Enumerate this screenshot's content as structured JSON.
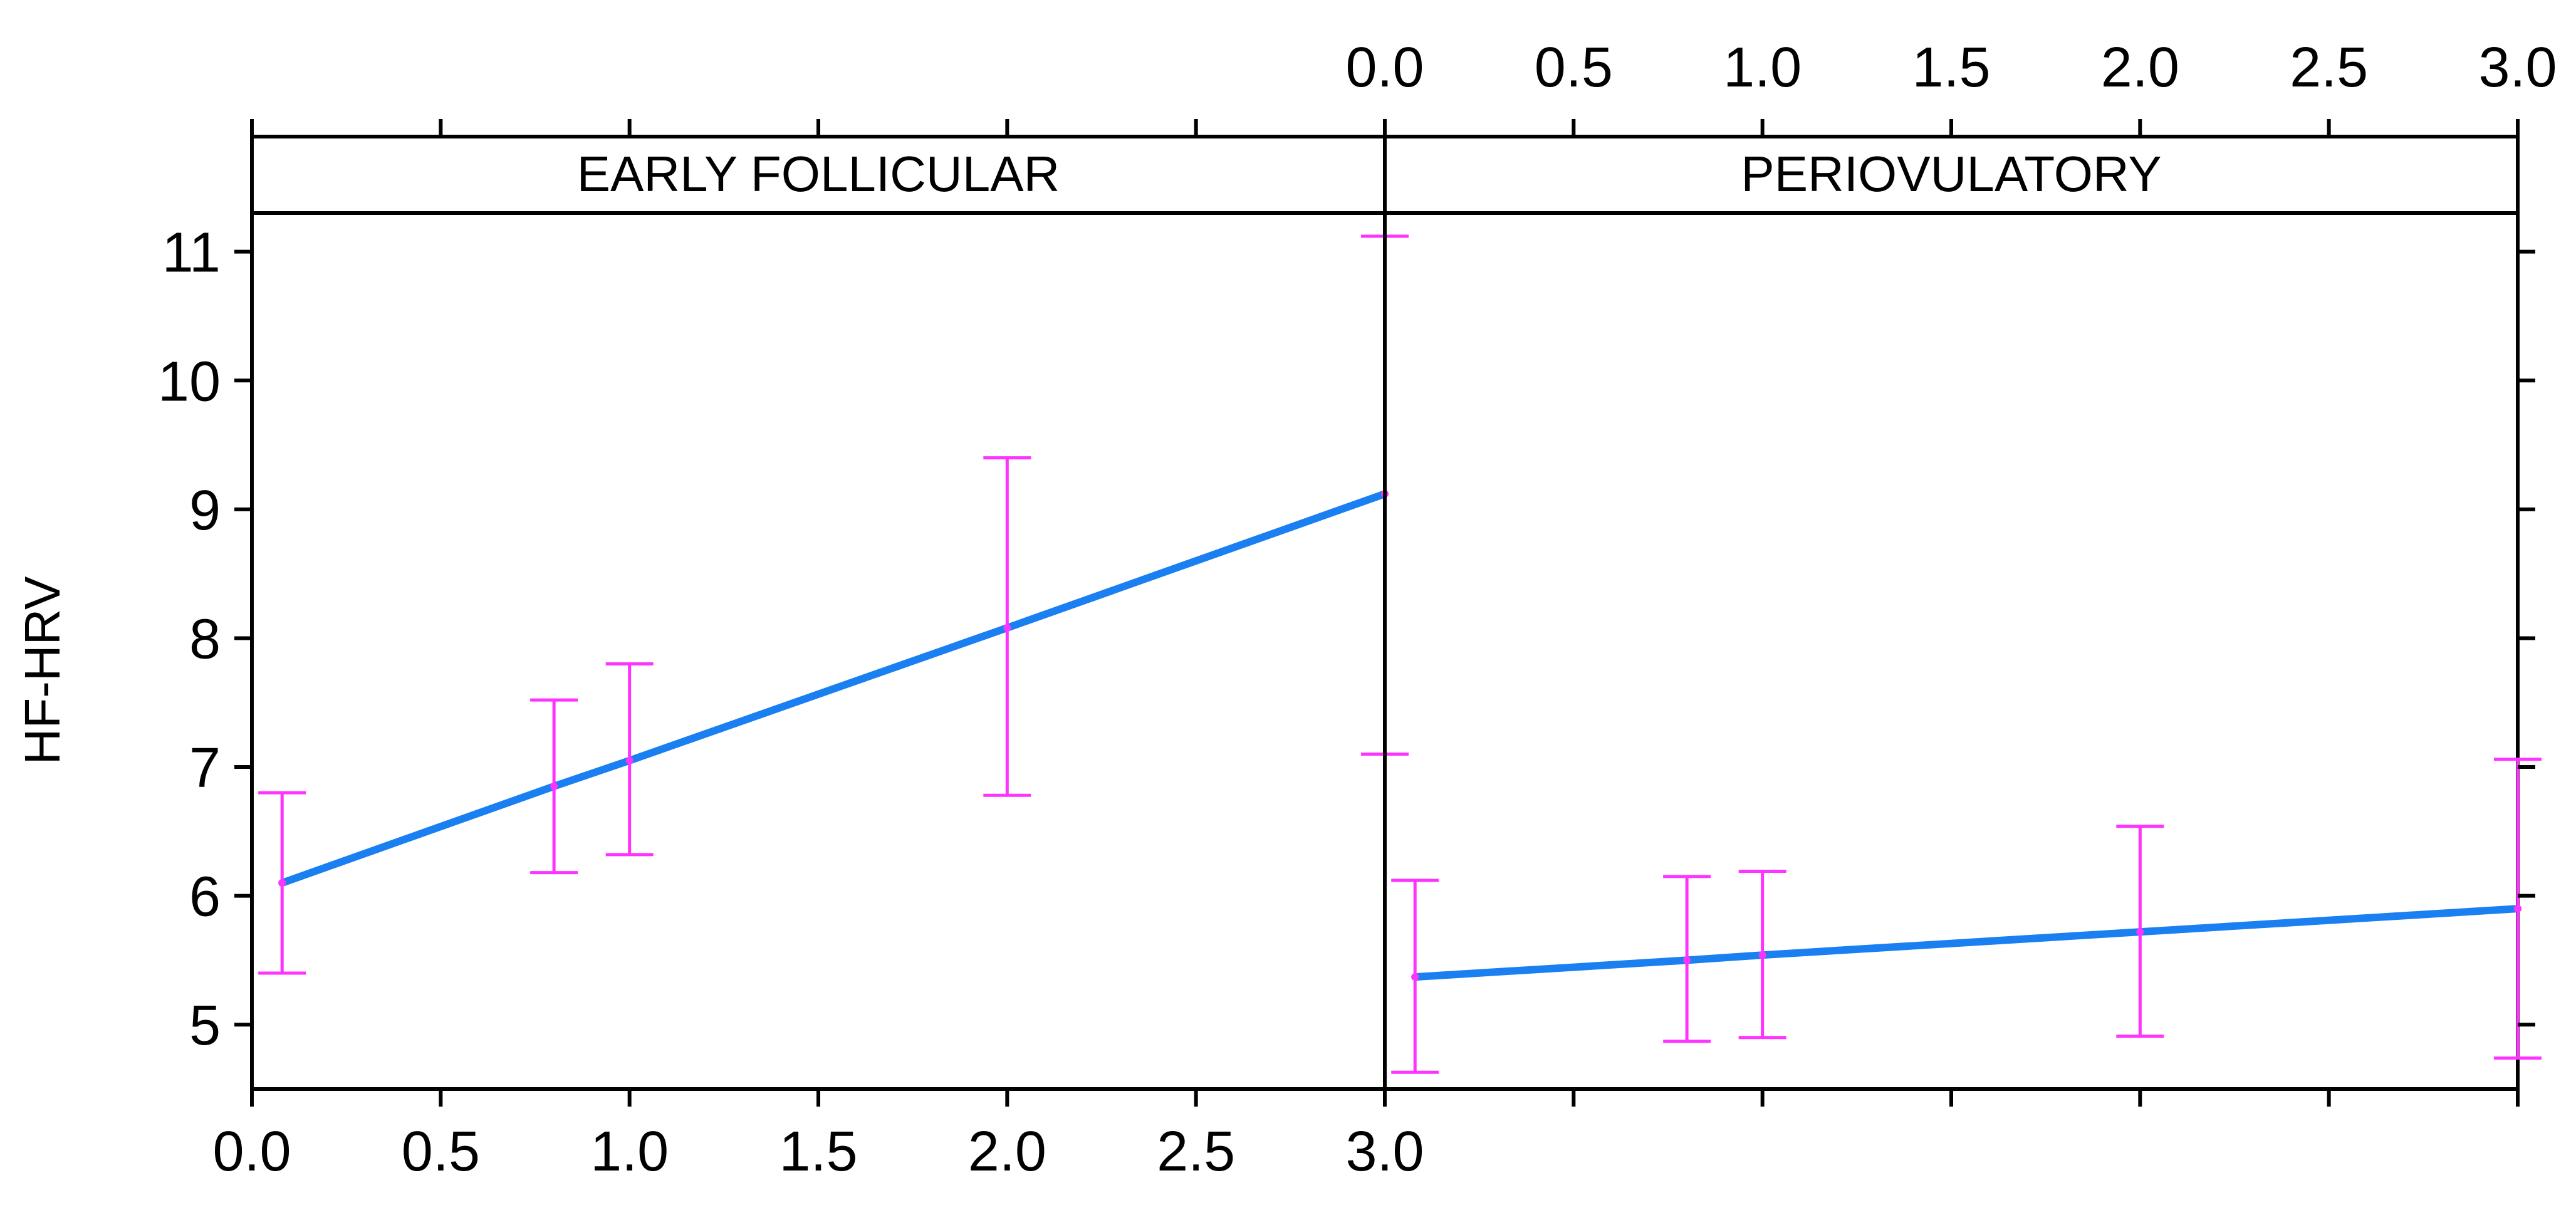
{
  "chart_data": {
    "type": "line",
    "ylabel": "HF-HRV",
    "xlabel": "",
    "xlim": [
      0,
      3
    ],
    "ylim": [
      4.5,
      11.3
    ],
    "x_ticks": [
      "0.0",
      "0.5",
      "1.0",
      "1.5",
      "2.0",
      "2.5",
      "3.0"
    ],
    "y_ticks": [
      "5",
      "6",
      "7",
      "8",
      "9",
      "10",
      "11"
    ],
    "line_color": "#1a7ff0",
    "errorbar_color": "#ff33ff",
    "panels": [
      {
        "strip_label": "EARLY FOLLICULAR",
        "x": [
          0.08,
          0.8,
          1.0,
          2.0,
          3.0
        ],
        "fit": [
          6.1,
          6.85,
          7.05,
          8.08,
          9.12
        ],
        "lower": [
          5.4,
          6.18,
          6.32,
          6.78,
          7.1
        ],
        "upper": [
          6.8,
          7.52,
          7.8,
          9.4,
          11.12
        ]
      },
      {
        "strip_label": "PERIOVULATORY",
        "x": [
          0.08,
          0.8,
          1.0,
          2.0,
          3.0
        ],
        "fit": [
          5.37,
          5.5,
          5.54,
          5.72,
          5.9
        ],
        "lower": [
          4.63,
          4.87,
          4.9,
          4.91,
          4.74
        ],
        "upper": [
          6.12,
          6.15,
          6.19,
          6.54,
          7.06
        ]
      }
    ]
  }
}
